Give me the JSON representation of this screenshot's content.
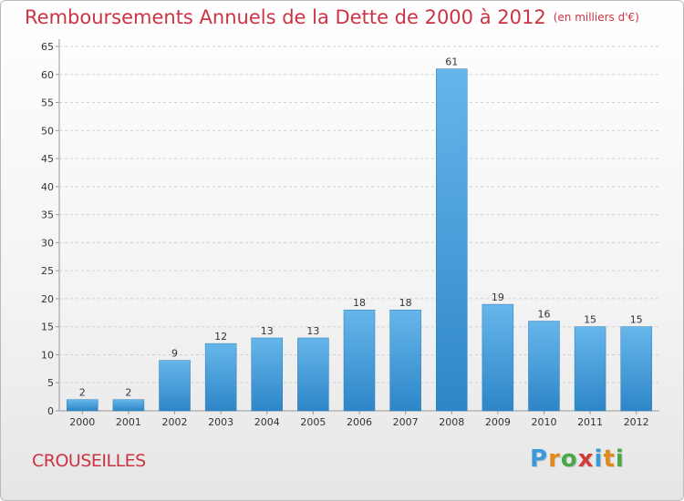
{
  "header": {
    "title": "Remboursements Annuels de la Dette de 2000 à 2012",
    "unit": "(en milliers d'€)"
  },
  "commune": "CROUSEILLES",
  "logo": {
    "text": "Proxiti",
    "letters": [
      {
        "char": "P",
        "color": "#3a9ad9"
      },
      {
        "char": "r",
        "color": "#e08a1e"
      },
      {
        "char": "o",
        "color": "#4aa84a"
      },
      {
        "char": "x",
        "color": "#d43a3a"
      },
      {
        "char": "i",
        "color": "#3a9ad9"
      },
      {
        "char": "t",
        "color": "#e08a1e"
      },
      {
        "char": "i",
        "color": "#4aa84a"
      }
    ]
  },
  "colors": {
    "title": "#cc3344",
    "bar_light": "#66b6ea",
    "bar_dark": "#2e86c8",
    "grid": "#cfcfcf"
  },
  "chart_data": {
    "type": "bar",
    "title": "Remboursements Annuels de la Dette de 2000 à 2012",
    "subtitle": "(en milliers d'€)",
    "xlabel": "",
    "ylabel": "",
    "categories": [
      "2000",
      "2001",
      "2002",
      "2003",
      "2004",
      "2005",
      "2006",
      "2007",
      "2008",
      "2009",
      "2010",
      "2011",
      "2012"
    ],
    "values": [
      2,
      2,
      9,
      12,
      13,
      13,
      18,
      18,
      61,
      19,
      16,
      15,
      15
    ],
    "ylim": [
      0,
      65
    ],
    "yticks": [
      0,
      5,
      10,
      15,
      20,
      25,
      30,
      35,
      40,
      45,
      50,
      55,
      60,
      65
    ],
    "grid": "horizontal dashed",
    "data_labels": true
  }
}
